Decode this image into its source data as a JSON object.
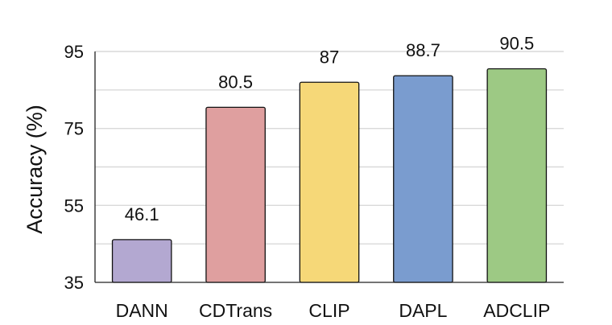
{
  "chart_data": {
    "type": "bar",
    "title": "",
    "xlabel": "",
    "ylabel": "Accuracy (%)",
    "ylim": [
      35,
      95
    ],
    "yticks": [
      35,
      55,
      75,
      95
    ],
    "grid": true,
    "categories": [
      "DANN",
      "CDTrans",
      "CLIP",
      "DAPL",
      "ADCLIP"
    ],
    "values": [
      46.1,
      80.5,
      87,
      88.7,
      90.5
    ],
    "value_labels": [
      "46.1",
      "80.5",
      "87",
      "88.7",
      "90.5"
    ],
    "colors": [
      "#b3a8d1",
      "#df9f9f",
      "#f6d878",
      "#7a9ccf",
      "#9dc984"
    ]
  }
}
